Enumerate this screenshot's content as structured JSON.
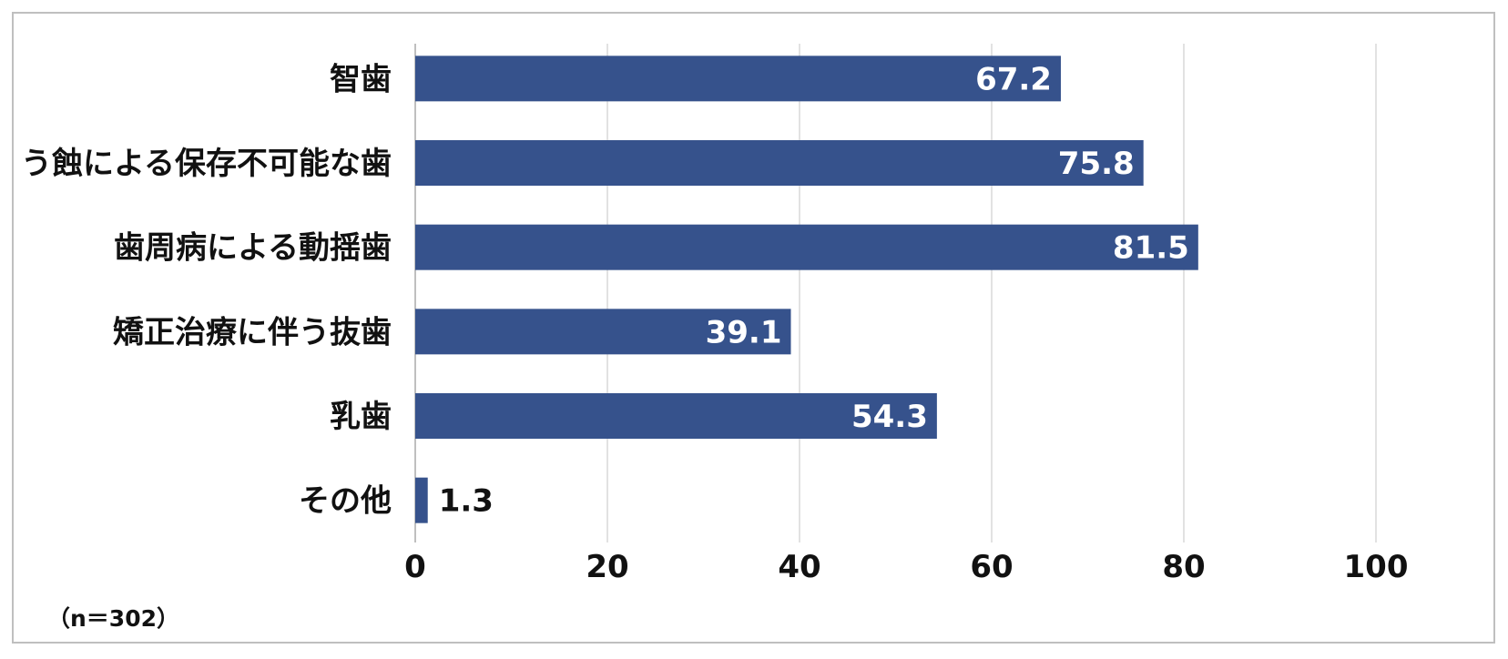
{
  "chart_data": {
    "type": "bar",
    "orientation": "horizontal",
    "categories": [
      "智歯",
      "う蝕による保存不可能な歯",
      "歯周病による動揺歯",
      "矯正治療に伴う抜歯",
      "乳歯",
      "その他"
    ],
    "values": [
      67.2,
      75.8,
      81.5,
      39.1,
      54.3,
      1.3
    ],
    "value_labels": [
      "67.2",
      "75.8",
      "81.5",
      "39.1",
      "54.3",
      "1.3"
    ],
    "xlim": [
      0,
      100
    ],
    "xticks": [
      0,
      20,
      40,
      60,
      80,
      100
    ],
    "grid": "vertical",
    "bar_color": "#36528c",
    "grid_color": "#d9d9d9",
    "note": "（n＝302）",
    "title": "",
    "xlabel": "",
    "ylabel": ""
  }
}
